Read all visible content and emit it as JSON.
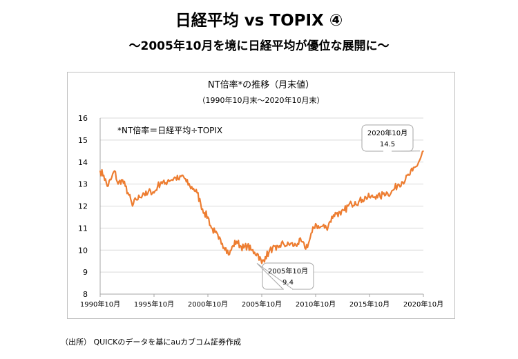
{
  "page": {
    "title": "日経平均 vs TOPIX ④",
    "subtitle": "～2005年10月を境に日経平均が優位な展開に～",
    "source_note": "（出所） QUICKのデータを基にauカブコム証券作成"
  },
  "colors": {
    "line": "#ed7d31",
    "grid": "#d9d9d9",
    "axis": "#a6a6a6"
  },
  "chart_data": {
    "type": "line",
    "title": "NT倍率*の推移（月末値）",
    "subtitle": "（1990年10月末～2020年10月末）",
    "annotation_formula": "*NT倍率＝日経平均÷TOPIX",
    "xlabel": "",
    "ylabel": "",
    "ylim": [
      8,
      16
    ],
    "y_ticks": [
      8,
      9,
      10,
      11,
      12,
      13,
      14,
      15,
      16
    ],
    "x_ticks": [
      "1990年10月",
      "1995年10月",
      "2000年10月",
      "2005年10月",
      "2010年10月",
      "2015年10月",
      "2020年10月"
    ],
    "grid": true,
    "callouts": [
      {
        "label": "2005年10月",
        "value": "9.4"
      },
      {
        "label": "2020年10月",
        "value": "14.5"
      }
    ],
    "series": [
      {
        "points": [
          [
            "1990-10",
            13.6
          ],
          [
            "1991-02",
            13.4
          ],
          [
            "1991-06",
            12.9
          ],
          [
            "1991-10",
            13.2
          ],
          [
            "1992-02",
            13.6
          ],
          [
            "1992-06",
            13.0
          ],
          [
            "1992-10",
            13.2
          ],
          [
            "1993-02",
            12.9
          ],
          [
            "1993-06",
            12.5
          ],
          [
            "1993-10",
            12.0
          ],
          [
            "1994-02",
            12.3
          ],
          [
            "1994-06",
            12.4
          ],
          [
            "1994-10",
            12.6
          ],
          [
            "1995-02",
            12.5
          ],
          [
            "1995-06",
            12.7
          ],
          [
            "1995-10",
            12.6
          ],
          [
            "1996-02",
            12.9
          ],
          [
            "1996-06",
            13.1
          ],
          [
            "1996-10",
            13.0
          ],
          [
            "1997-02",
            13.2
          ],
          [
            "1997-06",
            13.2
          ],
          [
            "1997-10",
            13.3
          ],
          [
            "1998-02",
            13.2
          ],
          [
            "1998-06",
            13.4
          ],
          [
            "1998-10",
            13.1
          ],
          [
            "1999-02",
            12.9
          ],
          [
            "1999-06",
            12.8
          ],
          [
            "1999-10",
            12.6
          ],
          [
            "2000-02",
            12.1
          ],
          [
            "2000-06",
            11.7
          ],
          [
            "2000-10",
            11.5
          ],
          [
            "2001-02",
            11.0
          ],
          [
            "2001-06",
            10.8
          ],
          [
            "2001-10",
            10.5
          ],
          [
            "2002-02",
            10.3
          ],
          [
            "2002-06",
            10.1
          ],
          [
            "2002-10",
            9.8
          ],
          [
            "2003-02",
            10.2
          ],
          [
            "2003-06",
            10.4
          ],
          [
            "2003-10",
            10.2
          ],
          [
            "2004-02",
            10.1
          ],
          [
            "2004-06",
            10.2
          ],
          [
            "2004-10",
            10.0
          ],
          [
            "2005-02",
            9.9
          ],
          [
            "2005-06",
            9.8
          ],
          [
            "2005-10",
            9.4
          ],
          [
            "2006-02",
            9.7
          ],
          [
            "2006-06",
            9.9
          ],
          [
            "2006-10",
            10.1
          ],
          [
            "2007-02",
            10.0
          ],
          [
            "2007-06",
            10.2
          ],
          [
            "2007-10",
            10.3
          ],
          [
            "2008-02",
            10.2
          ],
          [
            "2008-06",
            10.3
          ],
          [
            "2008-10",
            10.2
          ],
          [
            "2009-02",
            10.3
          ],
          [
            "2009-06",
            10.4
          ],
          [
            "2009-10",
            10.1
          ],
          [
            "2010-02",
            10.3
          ],
          [
            "2010-06",
            10.8
          ],
          [
            "2010-10",
            11.2
          ],
          [
            "2011-02",
            11.0
          ],
          [
            "2011-06",
            11.1
          ],
          [
            "2011-10",
            11.0
          ],
          [
            "2012-02",
            11.3
          ],
          [
            "2012-06",
            11.6
          ],
          [
            "2012-10",
            11.7
          ],
          [
            "2013-02",
            11.6
          ],
          [
            "2013-06",
            11.8
          ],
          [
            "2013-10",
            12.0
          ],
          [
            "2014-02",
            12.1
          ],
          [
            "2014-06",
            12.2
          ],
          [
            "2014-10",
            12.2
          ],
          [
            "2015-02",
            12.3
          ],
          [
            "2015-06",
            12.4
          ],
          [
            "2015-10",
            12.4
          ],
          [
            "2016-02",
            12.4
          ],
          [
            "2016-06",
            12.5
          ],
          [
            "2016-10",
            12.4
          ],
          [
            "2017-02",
            12.6
          ],
          [
            "2017-06",
            12.6
          ],
          [
            "2017-10",
            12.6
          ],
          [
            "2018-02",
            12.8
          ],
          [
            "2018-06",
            13.0
          ],
          [
            "2018-10",
            13.1
          ],
          [
            "2019-02",
            13.2
          ],
          [
            "2019-06",
            13.4
          ],
          [
            "2019-10",
            13.6
          ],
          [
            "2020-02",
            13.8
          ],
          [
            "2020-06",
            14.1
          ],
          [
            "2020-10",
            14.5
          ]
        ]
      }
    ]
  }
}
